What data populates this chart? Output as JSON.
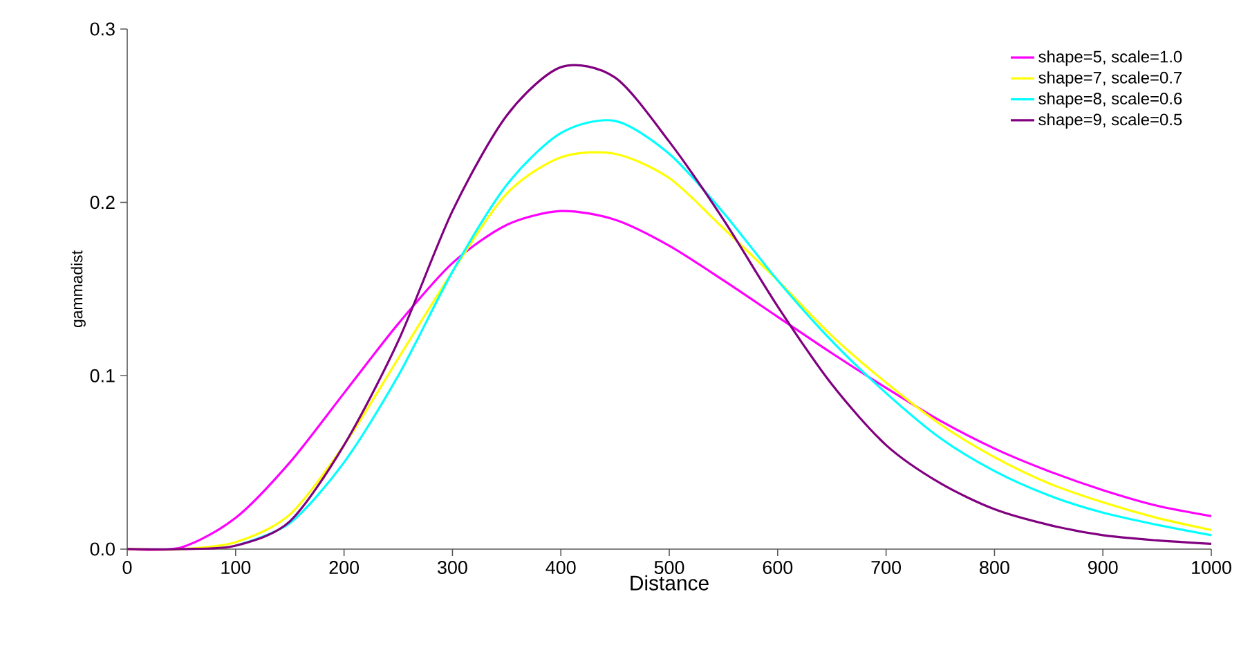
{
  "chart_data": {
    "type": "line",
    "xlabel": "Distance",
    "ylabel": "gammadist",
    "x": [
      0,
      50,
      100,
      150,
      200,
      250,
      300,
      350,
      400,
      450,
      500,
      550,
      600,
      650,
      700,
      750,
      800,
      850,
      900,
      950,
      1000
    ],
    "series": [
      {
        "name": "shape=5, scale=1.0",
        "color": "#ff00ff",
        "values": [
          0,
          0.001,
          0.018,
          0.05,
          0.09,
          0.13,
          0.165,
          0.187,
          0.195,
          0.19,
          0.175,
          0.155,
          0.134,
          0.113,
          0.093,
          0.074,
          0.058,
          0.045,
          0.034,
          0.025,
          0.019
        ]
      },
      {
        "name": "shape=7, scale=0.7",
        "color": "#ffff00",
        "values": [
          0,
          0,
          0.004,
          0.02,
          0.06,
          0.11,
          0.16,
          0.205,
          0.226,
          0.228,
          0.214,
          0.185,
          0.155,
          0.123,
          0.096,
          0.072,
          0.053,
          0.038,
          0.027,
          0.018,
          0.011
        ]
      },
      {
        "name": "shape=8, scale=0.6",
        "color": "#00ffff",
        "values": [
          null,
          null,
          0.002,
          0.015,
          0.05,
          0.1,
          0.16,
          0.21,
          0.24,
          0.247,
          0.228,
          0.194,
          0.155,
          0.12,
          0.09,
          0.064,
          0.045,
          0.031,
          0.021,
          0.014,
          0.008
        ]
      },
      {
        "name": "shape=9, scale=0.5",
        "color": "#800080",
        "values": [
          0,
          0,
          0.002,
          0.016,
          0.06,
          0.12,
          0.195,
          0.25,
          0.278,
          0.272,
          0.235,
          0.19,
          0.14,
          0.095,
          0.06,
          0.038,
          0.023,
          0.014,
          0.008,
          0.005,
          0.003
        ]
      }
    ],
    "xlim": [
      0,
      1000
    ],
    "xticks": [
      0,
      100,
      200,
      300,
      400,
      500,
      600,
      700,
      800,
      900,
      1000
    ],
    "ylim": [
      0,
      0.3
    ],
    "yticks": [
      {
        "value": 0,
        "label": "0.0"
      },
      0.1,
      0.2,
      0.3
    ],
    "legend": "top right",
    "grid": false,
    "marker": "none",
    "line_style": "solid"
  }
}
